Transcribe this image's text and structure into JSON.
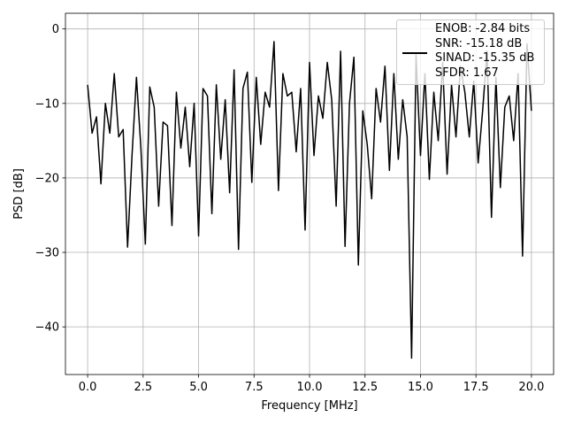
{
  "chart_data": {
    "type": "line",
    "xlabel": "Frequency [MHz]",
    "ylabel": "PSD [dB]",
    "x": [
      0,
      0.2,
      0.4,
      0.6,
      0.8,
      1,
      1.2,
      1.4,
      1.6,
      1.8,
      2,
      2.2,
      2.4,
      2.6,
      2.8,
      3,
      3.2,
      3.4,
      3.6,
      3.8,
      4,
      4.2,
      4.4,
      4.6,
      4.8,
      5,
      5.2,
      5.4,
      5.6,
      5.8,
      6,
      6.2,
      6.4,
      6.6,
      6.8,
      7,
      7.2,
      7.4,
      7.6,
      7.8,
      8,
      8.2,
      8.4,
      8.6,
      8.8,
      9,
      9.2,
      9.4,
      9.6,
      9.8,
      10,
      10.2,
      10.4,
      10.6,
      10.8,
      11,
      11.2,
      11.4,
      11.6,
      11.8,
      12,
      12.2,
      12.4,
      12.6,
      12.8,
      13,
      13.2,
      13.4,
      13.6,
      13.8,
      14,
      14.2,
      14.4,
      14.6,
      14.8,
      15,
      15.2,
      15.4,
      15.6,
      15.8,
      16,
      16.2,
      16.4,
      16.6,
      16.8,
      17,
      17.2,
      17.4,
      17.6,
      17.8,
      18,
      18.2,
      18.4,
      18.6,
      18.8,
      19,
      19.2,
      19.4,
      19.6,
      19.8,
      20
    ],
    "series": [
      {
        "name": "ENOB: -2.84 bits\nSNR: -15.18 dB\nSINAD: -15.35 dB\nSFDR: 1.67",
        "color": "#000000",
        "values": [
          -7.5,
          -14,
          -11.8,
          -20.8,
          -10,
          -14,
          -6,
          -14.5,
          -13.5,
          -29.3,
          -17,
          -6.5,
          -16,
          -28.9,
          -7.8,
          -10.5,
          -23.8,
          -12.5,
          -13,
          -26.4,
          -8.5,
          -16,
          -10.5,
          -18.5,
          -10,
          -27.8,
          -8,
          -9,
          -24.8,
          -7.5,
          -17.5,
          -9.5,
          -22,
          -5.5,
          -29.6,
          -8,
          -5.8,
          -20.6,
          -6.5,
          -15.5,
          -8.5,
          -10.5,
          -1.7,
          -21.7,
          -6,
          -9,
          -8.5,
          -16.5,
          -8,
          -27,
          -4.5,
          -17,
          -9,
          -12,
          -4.5,
          -9.5,
          -23.8,
          -3,
          -29.2,
          -10,
          -3.8,
          -31.7,
          -11,
          -15.5,
          -22.8,
          -8,
          -12.5,
          -5,
          -19,
          -6,
          -17.5,
          -9.5,
          -14.5,
          -44.2,
          -3.5,
          -17,
          -6,
          -20.2,
          -8.5,
          -15,
          -4.5,
          -19.5,
          -7.5,
          -14.5,
          -5,
          -8.5,
          -14.5,
          -7,
          -18,
          -11,
          -3,
          -25.3,
          -6.5,
          -21.3,
          -10.5,
          -9,
          -15,
          -6,
          -30.5,
          -2,
          -11
        ]
      }
    ],
    "xlim": [
      -1,
      21
    ],
    "ylim": [
      -46.4,
      2.1
    ],
    "xticks": [
      {
        "value": 0,
        "label": "0.0"
      },
      2.5,
      {
        "value": 5,
        "label": "5.0"
      },
      7.5,
      {
        "value": 10,
        "label": "10.0"
      },
      12.5,
      {
        "value": 15,
        "label": "15.0"
      },
      17.5,
      {
        "value": 20,
        "label": "20.0"
      }
    ],
    "yticks": [
      {
        "value": -40,
        "label": "−40"
      },
      {
        "value": -30,
        "label": "−30"
      },
      {
        "value": -20,
        "label": "−20"
      },
      {
        "value": -10,
        "label": "−10"
      },
      0
    ],
    "grid": true,
    "legend": "upper right"
  }
}
